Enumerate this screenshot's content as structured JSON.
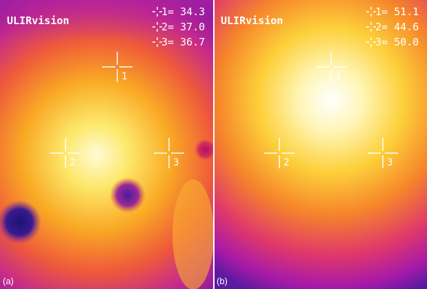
{
  "panels": [
    {
      "brand": "ULIRvision",
      "readings": [
        "1= 34.3",
        "2= 37.0",
        "3= 36.7"
      ],
      "markers": [
        "1",
        "2",
        "3"
      ],
      "caption": "(a)"
    },
    {
      "brand": "ULIRvision",
      "readings": [
        "1= 51.1",
        "2= 44.6",
        "3= 50.0"
      ],
      "markers": [
        "1",
        "2",
        "3"
      ],
      "caption": "(b)"
    }
  ]
}
